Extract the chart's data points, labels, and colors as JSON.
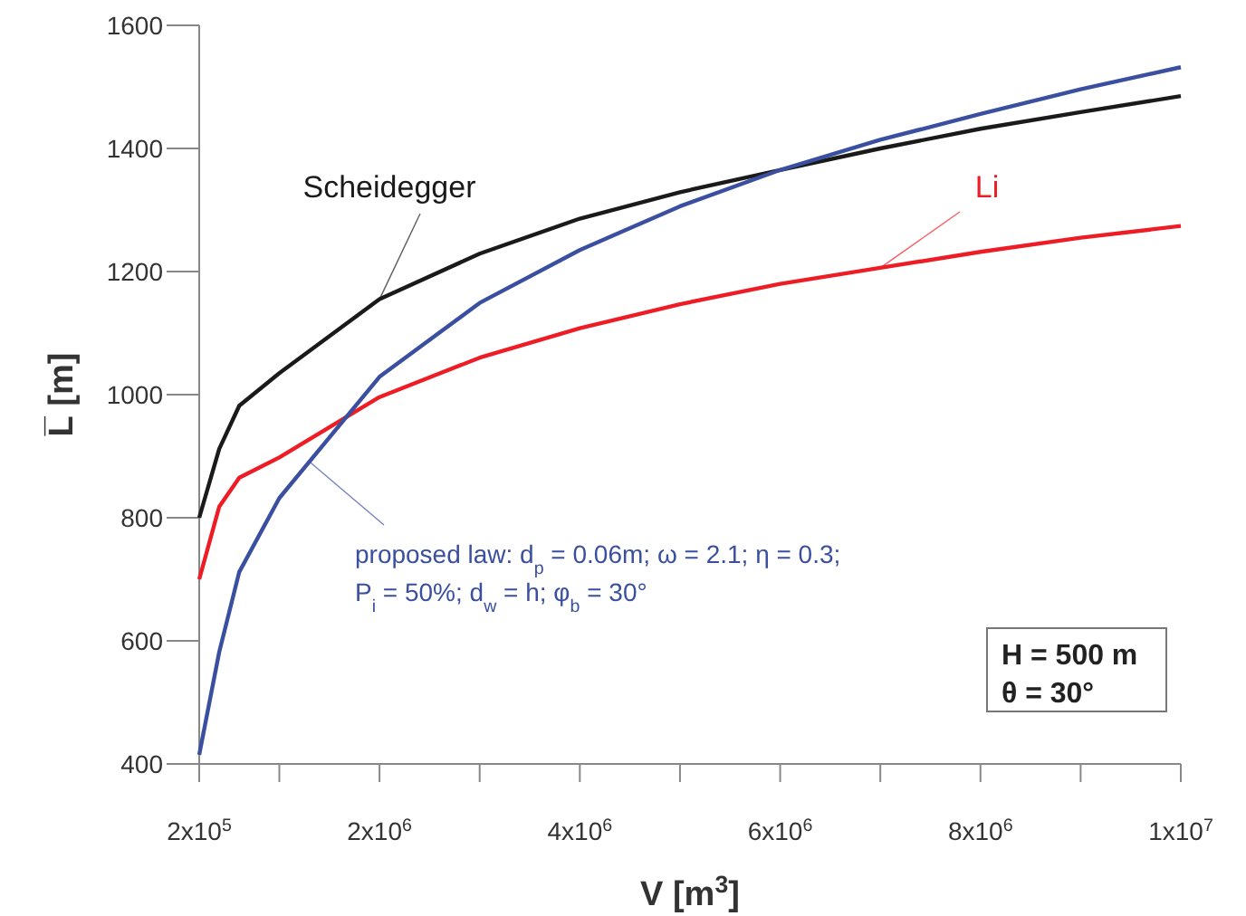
{
  "chart_data": {
    "type": "line",
    "xlabel": "V [m$^{3}$]",
    "ylabel": "L̅ [m]",
    "xlim": [
      200000,
      10000000
    ],
    "xticks": [
      {
        "value": 200000,
        "label": "2x10$^{5}$"
      },
      {
        "value": 1000000,
        "label": null
      },
      {
        "value": 2000000,
        "label": "2x10$^{6}$"
      },
      {
        "value": 3000000,
        "label": null
      },
      {
        "value": 4000000,
        "label": "4x10$^{6}$"
      },
      {
        "value": 5000000,
        "label": null
      },
      {
        "value": 6000000,
        "label": "6x10$^{6}$"
      },
      {
        "value": 7000000,
        "label": null
      },
      {
        "value": 8000000,
        "label": "8x10$^{6}$"
      },
      {
        "value": 9000000,
        "label": null
      },
      {
        "value": 10000000,
        "label": "1x10$^{7}$"
      }
    ],
    "ylim": [
      400,
      1600
    ],
    "yticks": [
      400,
      600,
      800,
      1000,
      1200,
      1400,
      1600
    ],
    "x": [
      200000,
      400000,
      600000,
      1000000,
      2000000,
      3000000,
      4000000,
      5000000,
      6000000,
      7000000,
      8000000,
      9000000,
      10000000
    ],
    "series": [
      {
        "name": "Scheidegger",
        "color": "#1a1a1a",
        "values": [
          800,
          912,
          982,
          1035,
          1155,
          1229,
          1286,
          1329,
          1365,
          1400,
          1432,
          1459,
          1485
        ]
      },
      {
        "name": "Li",
        "color": "#ee1c25",
        "values": [
          700,
          818,
          865,
          898,
          996,
          1060,
          1108,
          1147,
          1180,
          1206,
          1232,
          1255,
          1274
        ]
      },
      {
        "name": "proposed law: d$_{p}$ = 0.06m; ω = 2.1; η = 0.3; P$_{i}$ = 50%; d$_{w}$ = h; φ$_{b}$ = 30°",
        "color": "#3a4fa0",
        "values": [
          415,
          582,
          712,
          832,
          1029,
          1149,
          1235,
          1306,
          1365,
          1414,
          1456,
          1496,
          1532
        ]
      }
    ],
    "annotations": [
      "H = 500 m",
      "θ = 30°"
    ],
    "grid": false,
    "marker": "none",
    "line_style": "solid"
  }
}
